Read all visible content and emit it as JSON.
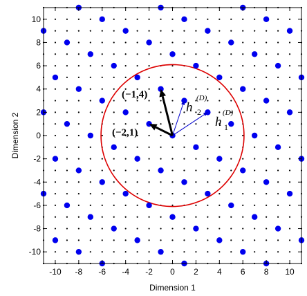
{
  "chart_data": {
    "type": "scatter",
    "xlabel": "Dimension 1",
    "ylabel": "Dimension 2",
    "xlim": [
      -11,
      11
    ],
    "ylim": [
      -11,
      11
    ],
    "xticks": [
      -10,
      -8,
      -6,
      -4,
      -2,
      0,
      2,
      4,
      6,
      8,
      10
    ],
    "yticks": [
      -10,
      -8,
      -6,
      -4,
      -2,
      0,
      2,
      4,
      6,
      8,
      10
    ],
    "xtick_labels": [
      "-10",
      "-8",
      "-6",
      "-4",
      "-2",
      "0",
      "2",
      "4",
      "6",
      "8",
      "10"
    ],
    "ytick_labels": [
      "-10",
      "-8",
      "-6",
      "-4",
      "-2",
      "0",
      "2",
      "4",
      "6",
      "8",
      "10"
    ],
    "grid": true,
    "grid_style": "integer lattice points drawn as small black dots",
    "coarse_lattice_basis": [
      [
        -2,
        1
      ],
      [
        -1,
        4
      ]
    ],
    "fine_lattice_basis": [
      [
        3,
        2
      ],
      [
        1,
        3
      ]
    ],
    "circle": {
      "center": [
        0,
        0
      ],
      "radius": 6.1
    },
    "vectors": [
      {
        "label": "(-2,1)",
        "to": [
          -2,
          1
        ]
      },
      {
        "label": "(-1,4)",
        "to": [
          -1,
          4
        ]
      },
      {
        "label": "h1(D)",
        "to": [
          3,
          2
        ]
      },
      {
        "label": "h2(D)",
        "to": [
          1,
          3
        ]
      }
    ],
    "annotations": {
      "v1": "(−2,1)",
      "v2": "(−1,4)",
      "h1_main": "h",
      "h1_sub": "1",
      "h1_sup": "(D)",
      "h2_main": "h",
      "h2_sub": "2",
      "h2_sup": "(D)"
    },
    "colors": {
      "points": "#0000ee",
      "circle": "#dd0000",
      "fine_vectors": "#0000cc",
      "coarse_vectors": "#000000",
      "grid_dots": "#000000"
    }
  }
}
